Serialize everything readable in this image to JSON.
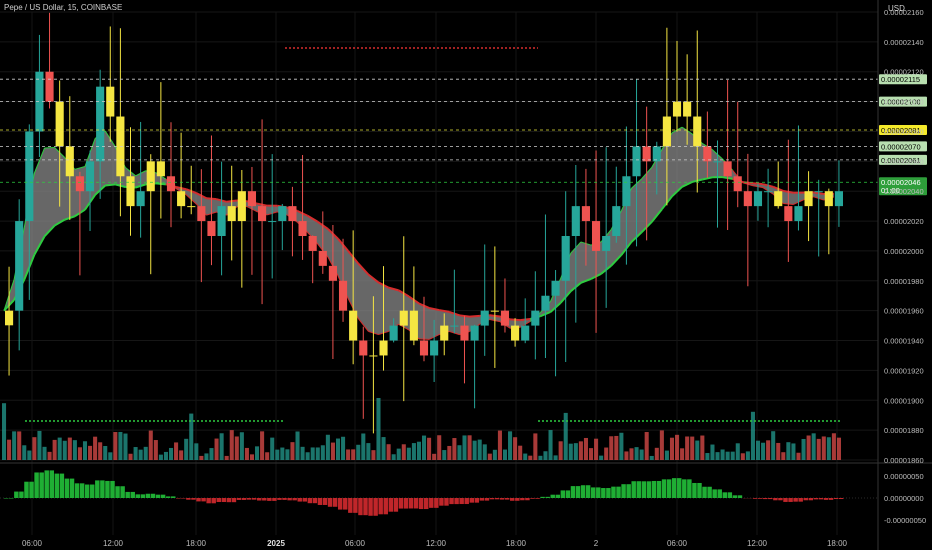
{
  "header": {
    "symbol_line": "Pepe / US Dollar, 15, COINBASE"
  },
  "price_axis": {
    "unit": "USD"
  },
  "colors": {
    "up": "#26a69a",
    "down": "#ef5350",
    "highlight": "#f5e642",
    "ribbon_fill": "#8a8a8a",
    "ribbon_up": "#2ecc40",
    "ribbon_down": "#d62d2d",
    "level_line": "#e6e63c",
    "level_dashed": "#cfcfcf"
  },
  "chart_data": {
    "type": "candlestick",
    "title": "Pepe / US Dollar, 15, COINBASE",
    "y_unit": "USD",
    "ylim": [
      1.86e-05,
      2.16e-05
    ],
    "y_ticks": [
      "0.00002160",
      "0.00002140",
      "0.00002120",
      "0.00002100",
      "0.00002080",
      "0.00002060",
      "0.00002040",
      "0.00002020",
      "0.00002000",
      "0.00001980",
      "0.00001960",
      "0.00001940",
      "0.00001920",
      "0.00001900",
      "0.00001880",
      "0.00001860"
    ],
    "x_ticks": [
      "06:00",
      "12:00",
      "18:00",
      "2025",
      "06:00",
      "12:00",
      "18:00",
      "2",
      "06:00",
      "12:00",
      "18:00"
    ],
    "price_labels": [
      {
        "value": "0.00002115",
        "style": "dashed"
      },
      {
        "value": "0.00002100",
        "style": "dashed"
      },
      {
        "value": "0.00002081",
        "style": "yellow"
      },
      {
        "value": "0.00002070",
        "style": "dashed"
      },
      {
        "value": "0.00002061",
        "style": "dashed"
      },
      {
        "value": "0.00002046",
        "style": "current",
        "countdown": "01:00"
      }
    ],
    "oscillator": {
      "y_ticks": [
        "0.00000050",
        "0.00000000",
        "-0.00000050"
      ]
    },
    "series": [
      {
        "name": "close_path",
        "values": [
          1.96e-05,
          2.02e-05,
          2.08e-05,
          2.12e-05,
          2.1e-05,
          2.07e-05,
          2.05e-05,
          2.04e-05,
          2.06e-05,
          2.11e-05,
          2.09e-05,
          2.05e-05,
          2.03e-05,
          2.04e-05,
          2.06e-05,
          2.05e-05,
          2.04e-05,
          2.03e-05,
          2.03e-05,
          2.02e-05,
          2.01e-05,
          2.03e-05,
          2.02e-05,
          2.04e-05,
          2.03e-05,
          2.02e-05,
          2.02e-05,
          2.03e-05,
          2.02e-05,
          2.01e-05,
          2e-05,
          1.99e-05,
          1.98e-05,
          1.96e-05,
          1.94e-05,
          1.93e-05,
          1.93e-05,
          1.94e-05,
          1.95e-05,
          1.96e-05,
          1.94e-05,
          1.93e-05,
          1.94e-05,
          1.95e-05,
          1.95e-05,
          1.94e-05,
          1.95e-05,
          1.96e-05,
          1.96e-05,
          1.95e-05,
          1.94e-05,
          1.95e-05,
          1.96e-05,
          1.97e-05,
          1.98e-05,
          2.01e-05,
          2.03e-05,
          2.02e-05,
          2e-05,
          2.01e-05,
          2.03e-05,
          2.05e-05,
          2.07e-05,
          2.06e-05,
          2.07e-05,
          2.09e-05,
          2.1e-05,
          2.09e-05,
          2.07e-05,
          2.06e-05,
          2.06e-05,
          2.05e-05,
          2.04e-05,
          2.03e-05,
          2.04e-05,
          2.04e-05,
          2.03e-05,
          2.02e-05,
          2.03e-05,
          2.04e-05,
          2.04e-05,
          2.03e-05,
          2.04e-05
        ]
      }
    ]
  }
}
